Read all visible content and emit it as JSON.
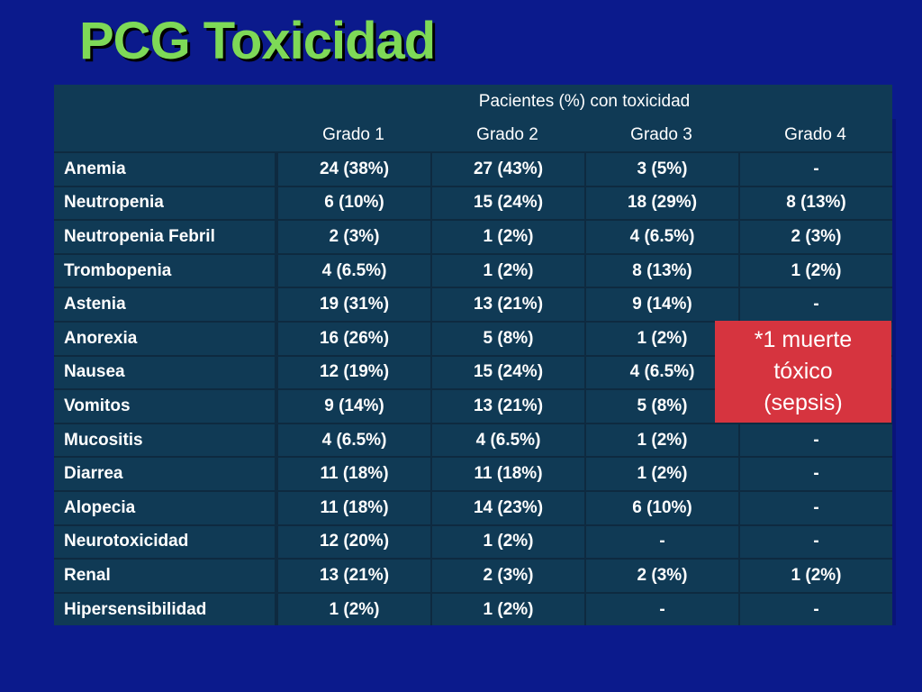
{
  "title": "PCG Toxicidad",
  "table": {
    "group_header": "Pacientes (%) con toxicidad",
    "columns": [
      "Grado 1",
      "Grado 2",
      "Grado 3",
      "Grado 4"
    ],
    "rows": [
      {
        "label": "Anemia",
        "values": [
          "24 (38%)",
          "27 (43%)",
          "3 (5%)",
          "-"
        ]
      },
      {
        "label": "Neutropenia",
        "values": [
          "6 (10%)",
          "15 (24%)",
          "18 (29%)",
          "8 (13%)"
        ]
      },
      {
        "label": "Neutropenia Febril",
        "values": [
          "2 (3%)",
          "1 (2%)",
          "4 (6.5%)",
          "2 (3%)"
        ]
      },
      {
        "label": "Trombopenia",
        "values": [
          "4 (6.5%)",
          "1 (2%)",
          "8 (13%)",
          "1 (2%)"
        ]
      },
      {
        "label": "Astenia",
        "values": [
          "19 (31%)",
          "13 (21%)",
          "9 (14%)",
          "-"
        ]
      },
      {
        "label": "Anorexia",
        "values": [
          "16 (26%)",
          "5 (8%)",
          "1 (2%)",
          ""
        ]
      },
      {
        "label": "Nausea",
        "values": [
          "12 (19%)",
          "15 (24%)",
          "4 (6.5%)",
          ""
        ]
      },
      {
        "label": "Vomitos",
        "values": [
          "9 (14%)",
          "13 (21%)",
          "5 (8%)",
          ""
        ]
      },
      {
        "label": "Mucositis",
        "values": [
          "4 (6.5%)",
          "4 (6.5%)",
          "1 (2%)",
          "-"
        ]
      },
      {
        "label": "Diarrea",
        "values": [
          "11 (18%)",
          "11 (18%)",
          "1 (2%)",
          "-"
        ]
      },
      {
        "label": "Alopecia",
        "values": [
          "11 (18%)",
          "14 (23%)",
          "6 (10%)",
          "-"
        ]
      },
      {
        "label": "Neurotoxicidad",
        "values": [
          "12 (20%)",
          "1 (2%)",
          "-",
          "-"
        ]
      },
      {
        "label": "Renal",
        "values": [
          "13 (21%)",
          "2 (3%)",
          "2 (3%)",
          "1 (2%)"
        ]
      },
      {
        "label": "Hipersensibilidad",
        "values": [
          "1 (2%)",
          "1 (2%)",
          "-",
          "-"
        ]
      }
    ]
  },
  "note": {
    "lines": [
      "*1 muerte",
      "tóxico",
      "(sepsis)"
    ]
  },
  "colors": {
    "background": "#0b1a8c",
    "title": "#7ed957",
    "table_bg": "#103a55",
    "note_bg": "#d6343f"
  }
}
